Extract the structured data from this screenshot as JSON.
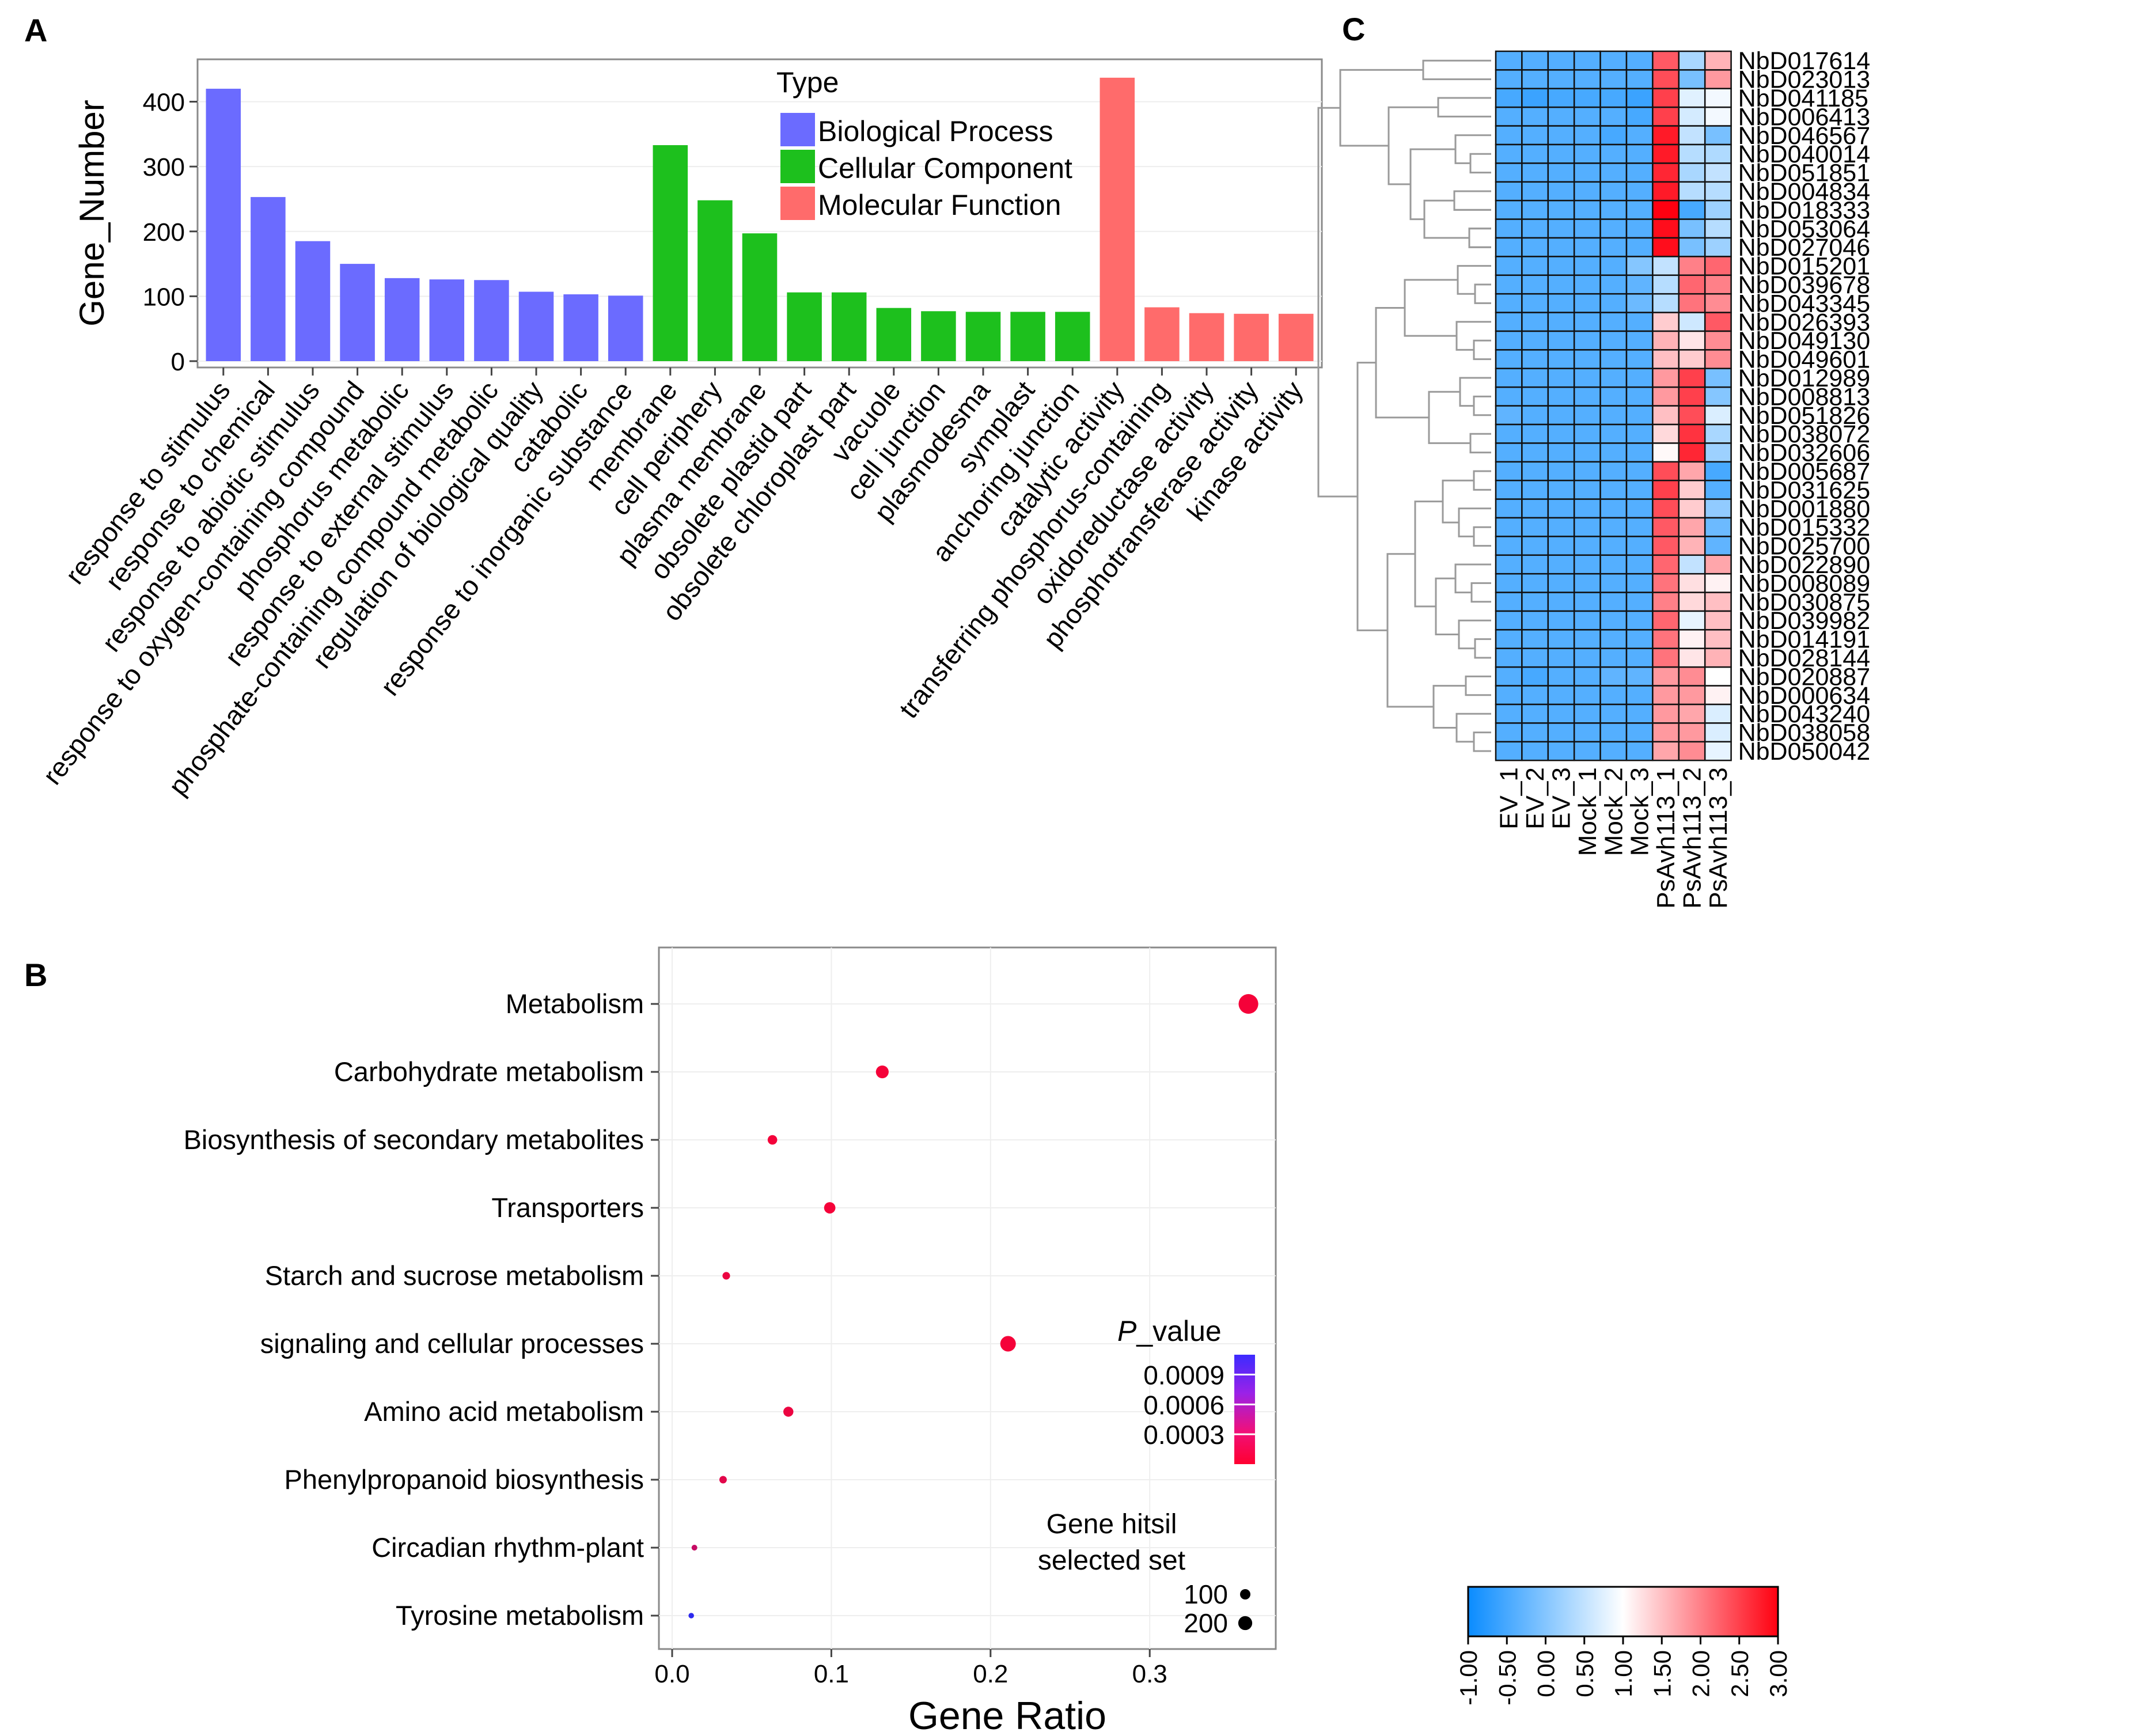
{
  "colors": {
    "biological_process": "#6B6BFF",
    "cellular_component": "#1DC01D",
    "molecular_function": "#FF6B6B",
    "point_low": "#FF0030",
    "point_high": "#1A2DFF",
    "hm_low": "#0A8CFF",
    "hm_mid": "#FFFFFF",
    "hm_high": "#FF0010"
  },
  "panels": {
    "a": "A",
    "b": "B",
    "c": "C"
  },
  "chart_data": [
    {
      "type": "bar",
      "title": "",
      "xlabel": "",
      "ylabel": "Gene_Number",
      "ylim": [
        0,
        460
      ],
      "yticks": [
        0,
        100,
        200,
        300,
        400
      ],
      "legend_title": "Type",
      "legend": [
        "Biological Process",
        "Cellular Component",
        "Molecular Function"
      ],
      "categories": [
        "response to stimulus",
        "response to chemical",
        "response to abiotic stimulus",
        "response to oxygen-containing compound",
        "phosphorus metabolic",
        "response to external stimulus",
        "phosphate-containing compound metabolic",
        "regulation of biological quality",
        "catabolic",
        "response to inorganic substance",
        "membrane",
        "cell periphery",
        "plasma membrane",
        "obsolete plastid part",
        "obsolete chloroplast part",
        "vacuole",
        "cell junction",
        "plasmodesma",
        "symplast",
        "anchoring junction",
        "catalytic activity",
        "transferring phosphorus-containing",
        "oxidoreductase activity",
        "phosphotransferase activity",
        "kinase activity"
      ],
      "values": [
        420,
        253,
        185,
        150,
        128,
        126,
        125,
        107,
        103,
        101,
        333,
        248,
        197,
        106,
        106,
        82,
        77,
        76,
        76,
        76,
        437,
        83,
        74,
        73,
        73
      ],
      "groups": [
        0,
        0,
        0,
        0,
        0,
        0,
        0,
        0,
        0,
        0,
        1,
        1,
        1,
        1,
        1,
        1,
        1,
        1,
        1,
        1,
        2,
        2,
        2,
        2,
        2
      ]
    },
    {
      "type": "scatter",
      "title": "",
      "xlabel": "Gene Ratio",
      "ylabel": "",
      "xlim": [
        -0.01,
        0.375
      ],
      "xticks": [
        "0.0",
        "0.1",
        "0.2",
        "0.3"
      ],
      "xtick_values": [
        0,
        0.1,
        0.2,
        0.3
      ],
      "categories": [
        "Metabolism",
        "Carbohydrate metabolism",
        "Biosynthesis of secondary metabolites",
        "Transporters",
        "Starch and sucrose metabolism",
        "signaling and cellular processes",
        "Amino acid metabolism",
        "Phenylpropanoid biosynthesis",
        "Circadian rhythm-plant",
        "Tyrosine metabolism"
      ],
      "x": [
        0.362,
        0.132,
        0.063,
        0.099,
        0.034,
        0.211,
        0.073,
        0.032,
        0.014,
        0.012
      ],
      "gene_hits": [
        206,
        75,
        36,
        56,
        19,
        120,
        41,
        18,
        8,
        7
      ],
      "p_value": [
        5e-05,
        5e-05,
        6e-05,
        5e-05,
        0.0001,
        5e-05,
        0.0001,
        0.00015,
        0.0003,
        0.0011
      ],
      "color_legend_title_italic": "P",
      "color_legend_title_rest": "_value",
      "color_legend_ticks": [
        "0.0009",
        "0.0006",
        "0.0003"
      ],
      "color_legend_tick_values": [
        0.0009,
        0.0006,
        0.0003
      ],
      "size_legend_title": [
        "Gene hitsil",
        "selected set"
      ],
      "size_legend_labels": [
        "100",
        "200"
      ],
      "size_legend_values": [
        100,
        200
      ]
    },
    {
      "type": "heatmap",
      "title": "",
      "columns": [
        "EV_1",
        "EV_2",
        "EV_3",
        "Mock_1",
        "Mock_2",
        "Mock_3",
        "PsAvh113_1",
        "PsAvh113_2",
        "PsAvh113_3"
      ],
      "rows": [
        "NbD017614",
        "NbD023013",
        "NbD041185",
        "NbD006413",
        "NbD046567",
        "NbD040014",
        "NbD051851",
        "NbD004834",
        "NbD018333",
        "NbD053064",
        "NbD027046",
        "NbD015201",
        "NbD039678",
        "NbD043345",
        "NbD026393",
        "NbD049130",
        "NbD049601",
        "NbD012989",
        "NbD008813",
        "NbD051826",
        "NbD038072",
        "NbD032606",
        "NbD005687",
        "NbD031625",
        "NbD001880",
        "NbD015332",
        "NbD025700",
        "NbD022890",
        "NbD008089",
        "NbD030875",
        "NbD039982",
        "NbD014191",
        "NbD028144",
        "NbD020887",
        "NbD000634",
        "NbD043240",
        "NbD038058",
        "NbD050042"
      ],
      "values": [
        [
          -0.4,
          -0.4,
          -0.4,
          -0.4,
          -0.4,
          -0.4,
          2.3,
          0.3,
          1.6
        ],
        [
          -0.4,
          -0.4,
          -0.4,
          -0.4,
          -0.4,
          -0.4,
          2.4,
          -0.1,
          1.8
        ],
        [
          -0.5,
          -0.6,
          -0.5,
          -0.5,
          -0.5,
          -0.6,
          2.5,
          0.75,
          0.9
        ],
        [
          -0.4,
          -0.4,
          -0.4,
          -0.4,
          -0.4,
          -0.5,
          2.5,
          0.65,
          0.9
        ],
        [
          -0.4,
          -0.4,
          -0.4,
          -0.4,
          -0.5,
          -0.4,
          2.8,
          0.5,
          -0.1
        ],
        [
          -0.4,
          -0.4,
          -0.4,
          -0.4,
          -0.4,
          -0.4,
          2.8,
          0.4,
          0.35
        ],
        [
          -0.4,
          -0.4,
          -0.4,
          -0.4,
          -0.4,
          -0.4,
          2.7,
          0.3,
          0.5
        ],
        [
          -0.4,
          -0.4,
          -0.4,
          -0.4,
          -0.4,
          -0.4,
          2.8,
          0.4,
          0.4
        ],
        [
          -0.4,
          -0.4,
          -0.4,
          -0.4,
          -0.4,
          -0.4,
          3.0,
          -0.5,
          0.2
        ],
        [
          -0.4,
          -0.4,
          -0.4,
          -0.4,
          -0.4,
          -0.4,
          2.9,
          -0.1,
          0.4
        ],
        [
          -0.4,
          -0.4,
          -0.4,
          -0.4,
          -0.4,
          -0.4,
          2.9,
          -0.1,
          0.2
        ],
        [
          -0.4,
          -0.4,
          -0.4,
          -0.4,
          -0.4,
          0.0,
          0.5,
          2.0,
          2.2
        ],
        [
          -0.4,
          -0.4,
          -0.4,
          -0.4,
          -0.4,
          -0.3,
          0.4,
          2.2,
          2.0
        ],
        [
          -0.4,
          -0.4,
          -0.4,
          -0.4,
          -0.4,
          -0.2,
          0.4,
          2.1,
          1.9
        ],
        [
          -0.4,
          -0.4,
          -0.4,
          -0.4,
          -0.4,
          -0.4,
          1.4,
          0.6,
          2.3
        ],
        [
          -0.4,
          -0.4,
          -0.4,
          -0.4,
          -0.4,
          -0.4,
          1.6,
          1.2,
          1.9
        ],
        [
          -0.4,
          -0.4,
          -0.4,
          -0.4,
          -0.4,
          -0.4,
          1.5,
          1.4,
          1.9
        ],
        [
          -0.4,
          -0.4,
          -0.4,
          -0.4,
          -0.4,
          -0.4,
          1.8,
          2.5,
          -0.1
        ],
        [
          -0.4,
          -0.4,
          -0.4,
          -0.4,
          -0.4,
          -0.4,
          1.8,
          2.5,
          0.0
        ],
        [
          -0.3,
          -0.4,
          -0.4,
          -0.4,
          -0.4,
          -0.4,
          1.5,
          2.4,
          0.7
        ],
        [
          -0.4,
          -0.4,
          -0.4,
          -0.4,
          -0.4,
          -0.4,
          1.3,
          2.6,
          0.3
        ],
        [
          -0.4,
          -0.4,
          -0.4,
          -0.4,
          -0.4,
          -0.4,
          1.05,
          2.7,
          0.2
        ],
        [
          -0.4,
          -0.4,
          -0.4,
          -0.4,
          -0.4,
          -0.4,
          2.4,
          1.7,
          -0.5
        ],
        [
          -0.4,
          -0.4,
          -0.4,
          -0.4,
          -0.4,
          -0.4,
          2.5,
          1.4,
          -0.4
        ],
        [
          -0.4,
          -0.4,
          -0.4,
          -0.4,
          -0.4,
          -0.4,
          2.4,
          1.4,
          0.1
        ],
        [
          -0.4,
          -0.4,
          -0.4,
          -0.4,
          -0.4,
          -0.4,
          2.3,
          1.7,
          -0.2
        ],
        [
          -0.4,
          -0.4,
          -0.4,
          -0.4,
          -0.4,
          -0.4,
          2.3,
          1.6,
          -0.3
        ],
        [
          -0.4,
          -0.4,
          -0.4,
          -0.4,
          -0.4,
          -0.4,
          2.2,
          0.5,
          1.7
        ],
        [
          -0.4,
          -0.4,
          -0.4,
          -0.4,
          -0.4,
          -0.4,
          2.1,
          1.25,
          1.1
        ],
        [
          -0.4,
          -0.4,
          -0.4,
          -0.4,
          -0.4,
          -0.4,
          2.0,
          1.3,
          1.5
        ],
        [
          -0.4,
          -0.4,
          -0.4,
          -0.4,
          -0.4,
          -0.4,
          2.2,
          0.8,
          1.5
        ],
        [
          -0.4,
          -0.4,
          -0.4,
          -0.4,
          -0.4,
          -0.4,
          2.1,
          1.1,
          1.5
        ],
        [
          -0.4,
          -0.4,
          -0.4,
          -0.4,
          -0.4,
          -0.4,
          2.1,
          1.2,
          1.6
        ],
        [
          -0.4,
          -0.5,
          -0.4,
          -0.4,
          -0.3,
          -0.3,
          1.8,
          1.9,
          1.0
        ],
        [
          -0.4,
          -0.4,
          -0.4,
          -0.4,
          -0.4,
          -0.4,
          1.8,
          1.8,
          1.1
        ],
        [
          -0.4,
          -0.4,
          -0.4,
          -0.4,
          -0.4,
          -0.4,
          1.8,
          1.7,
          0.7
        ],
        [
          -0.4,
          -0.4,
          -0.4,
          -0.4,
          -0.4,
          -0.4,
          1.8,
          1.8,
          0.7
        ],
        [
          -0.4,
          -0.4,
          -0.4,
          -0.4,
          -0.4,
          -0.4,
          1.7,
          1.9,
          0.8
        ]
      ],
      "colorbar_range": [
        -1.0,
        3.0
      ],
      "colorbar_ticks": [
        "-1.00",
        "-0.50",
        "0.00",
        "0.50",
        "1.00",
        "1.50",
        "2.00",
        "2.50",
        "3.00"
      ],
      "colorbar_tick_values": [
        -1.0,
        -0.5,
        0.0,
        0.5,
        1.0,
        1.5,
        2.0,
        2.5,
        3.0
      ]
    }
  ]
}
